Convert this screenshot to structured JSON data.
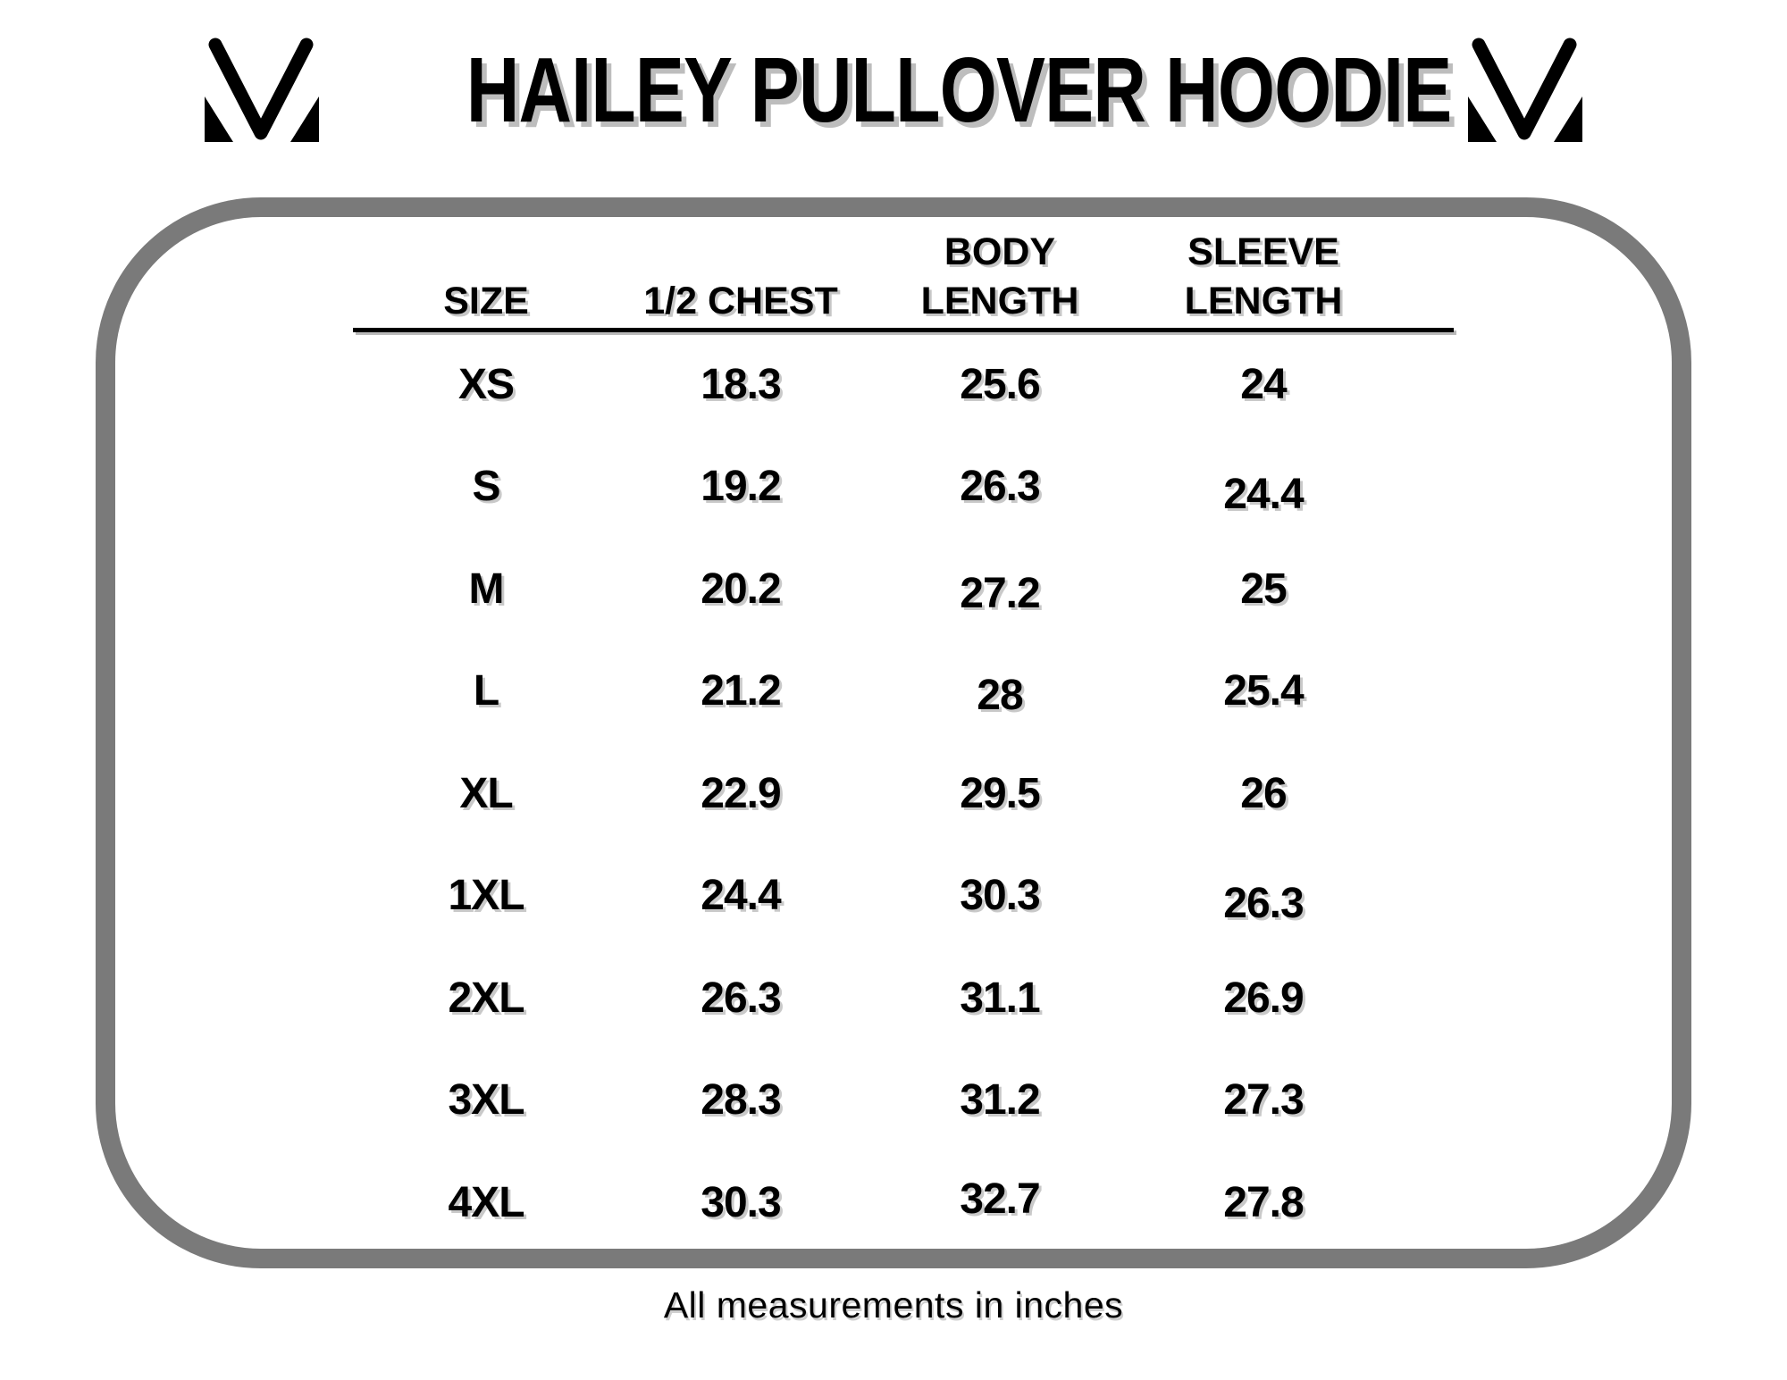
{
  "title": "HAILEY PULLOVER HOODIE",
  "header": {
    "left_logo": "mv-brand-monogram",
    "right_logo": "mv-brand-monogram"
  },
  "table": {
    "columns": [
      {
        "label": "SIZE",
        "lines": [
          "SIZE"
        ]
      },
      {
        "label": "1/2 CHEST",
        "lines": [
          "1/2 CHEST"
        ]
      },
      {
        "label": "BODY LENGTH",
        "lines": [
          "BODY",
          "LENGTH"
        ]
      },
      {
        "label": "SLEEVE LENGTH",
        "lines": [
          "SLEEVE",
          "LENGTH"
        ]
      }
    ],
    "rows": [
      [
        "XS",
        "18.3",
        "25.6",
        "24"
      ],
      [
        "S",
        "19.2",
        "26.3",
        "24.4"
      ],
      [
        "M",
        "20.2",
        "27.2",
        "25"
      ],
      [
        "L",
        "21.2",
        "28",
        "25.4"
      ],
      [
        "XL",
        "22.9",
        "29.5",
        "26"
      ],
      [
        "1XL",
        "24.4",
        "30.3",
        "26.3"
      ],
      [
        "2XL",
        "26.3",
        "31.1",
        "26.9"
      ],
      [
        "3XL",
        "28.3",
        "31.2",
        "27.3"
      ],
      [
        "4XL",
        "30.3",
        "32.7",
        "27.8"
      ]
    ]
  },
  "footer": {
    "note": "All measurements in inches"
  },
  "colors": {
    "border": "#7a7a7a",
    "text": "#000000",
    "shadow": "#bdbdbd",
    "background": "#ffffff"
  },
  "chart_data": {
    "type": "table",
    "title": "HAILEY PULLOVER HOODIE",
    "columns": [
      "SIZE",
      "1/2 CHEST",
      "BODY LENGTH",
      "SLEEVE LENGTH"
    ],
    "rows": [
      [
        "XS",
        18.3,
        25.6,
        24
      ],
      [
        "S",
        19.2,
        26.3,
        24.4
      ],
      [
        "M",
        20.2,
        27.2,
        25
      ],
      [
        "L",
        21.2,
        28,
        25.4
      ],
      [
        "XL",
        22.9,
        29.5,
        26
      ],
      [
        "1XL",
        24.4,
        30.3,
        26.3
      ],
      [
        "2XL",
        26.3,
        31.1,
        26.9
      ],
      [
        "3XL",
        28.3,
        31.2,
        27.3
      ],
      [
        "4XL",
        30.3,
        32.7,
        27.8
      ]
    ],
    "note": "All measurements in inches",
    "units": "inches"
  }
}
